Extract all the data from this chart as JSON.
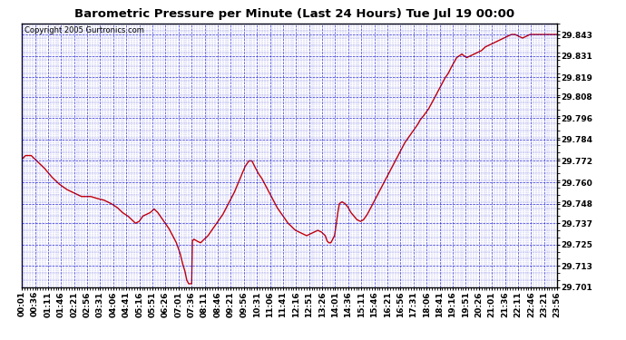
{
  "title": "Barometric Pressure per Minute (Last 24 Hours) Tue Jul 19 00:00",
  "copyright": "Copyright 2005 Gurtronics.com",
  "background_color": "#ffffff",
  "plot_bg_color": "#ffffff",
  "line_color": "#cc0000",
  "grid_color": "#0000cc",
  "border_color": "#000000",
  "ylabel_color": "#000000",
  "title_color": "#000000",
  "ylim": [
    29.701,
    29.849
  ],
  "yticks": [
    29.701,
    29.713,
    29.725,
    29.737,
    29.748,
    29.76,
    29.772,
    29.784,
    29.796,
    29.808,
    29.819,
    29.831,
    29.843
  ],
  "xtick_labels": [
    "00:01",
    "00:36",
    "01:11",
    "01:46",
    "02:21",
    "02:56",
    "03:31",
    "04:06",
    "04:41",
    "05:16",
    "05:51",
    "06:26",
    "07:01",
    "07:36",
    "08:11",
    "08:46",
    "09:21",
    "09:56",
    "10:31",
    "11:06",
    "11:41",
    "12:16",
    "12:51",
    "13:26",
    "14:01",
    "14:36",
    "15:11",
    "15:46",
    "16:21",
    "16:56",
    "17:31",
    "18:06",
    "18:41",
    "19:16",
    "19:51",
    "20:26",
    "21:01",
    "21:36",
    "22:11",
    "22:46",
    "23:21",
    "23:56"
  ],
  "line_width": 1.0,
  "title_fontsize": 9.5,
  "tick_fontsize": 6.5,
  "copyright_fontsize": 6
}
